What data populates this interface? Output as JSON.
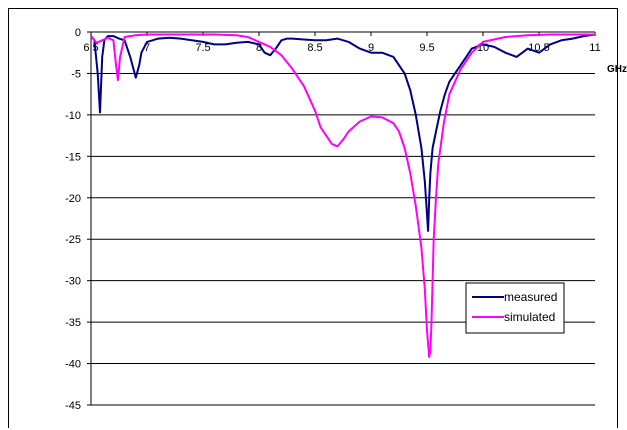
{
  "chart_data": {
    "type": "line",
    "title": "",
    "xlabel": "GHz",
    "ylabel": "",
    "xlim": [
      6.5,
      11
    ],
    "ylim": [
      -45,
      0
    ],
    "x_ticks": [
      "6.5",
      "7",
      "7.5",
      "8",
      "8.5",
      "9",
      "9.5",
      "10",
      "10.5",
      "11"
    ],
    "y_ticks": [
      "0",
      "-5",
      "-10",
      "-15",
      "-20",
      "-25",
      "-30",
      "-35",
      "-40",
      "-45"
    ],
    "grid": "horizontal",
    "legend_position": "right",
    "series": [
      {
        "name": "measured",
        "color": "#000080",
        "x": [
          6.5,
          6.53,
          6.56,
          6.58,
          6.6,
          6.62,
          6.65,
          6.7,
          6.75,
          6.8,
          6.85,
          6.9,
          6.93,
          6.95,
          7.0,
          7.05,
          7.1,
          7.2,
          7.3,
          7.4,
          7.5,
          7.6,
          7.7,
          7.8,
          7.9,
          8.0,
          8.05,
          8.1,
          8.15,
          8.2,
          8.25,
          8.3,
          8.4,
          8.5,
          8.6,
          8.7,
          8.8,
          8.9,
          9.0,
          9.1,
          9.2,
          9.3,
          9.35,
          9.4,
          9.45,
          9.48,
          9.5,
          9.51,
          9.52,
          9.53,
          9.55,
          9.58,
          9.62,
          9.66,
          9.7,
          9.75,
          9.8,
          9.85,
          9.9,
          10.0,
          10.1,
          10.2,
          10.3,
          10.4,
          10.5,
          10.6,
          10.7,
          10.8,
          10.9,
          11.0
        ],
        "values": [
          -0.5,
          -1.0,
          -5.0,
          -9.7,
          -3.0,
          -1.0,
          -0.5,
          -0.5,
          -0.8,
          -1.0,
          -3.0,
          -5.5,
          -4.0,
          -2.5,
          -1.2,
          -1.0,
          -0.8,
          -0.7,
          -0.8,
          -1.0,
          -1.2,
          -1.5,
          -1.5,
          -1.3,
          -1.2,
          -1.5,
          -2.5,
          -2.8,
          -2.0,
          -1.0,
          -0.8,
          -0.8,
          -0.9,
          -1.0,
          -1.0,
          -0.8,
          -1.2,
          -2.0,
          -2.5,
          -2.5,
          -3.0,
          -5.0,
          -7.0,
          -10.0,
          -14.0,
          -18.0,
          -22.0,
          -24.0,
          -20.0,
          -17.0,
          -14.0,
          -12.0,
          -9.5,
          -7.5,
          -6.0,
          -5.0,
          -4.0,
          -3.0,
          -2.0,
          -1.5,
          -1.8,
          -2.5,
          -3.0,
          -2.0,
          -2.5,
          -1.5,
          -1.0,
          -0.8,
          -0.5,
          -0.3
        ]
      },
      {
        "name": "simulated",
        "color": "#ff00ff",
        "x": [
          6.5,
          6.55,
          6.6,
          6.65,
          6.7,
          6.72,
          6.74,
          6.76,
          6.8,
          6.9,
          7.0,
          7.2,
          7.4,
          7.6,
          7.8,
          7.9,
          8.0,
          8.1,
          8.2,
          8.3,
          8.4,
          8.5,
          8.55,
          8.6,
          8.65,
          8.7,
          8.75,
          8.8,
          8.9,
          9.0,
          9.1,
          9.2,
          9.25,
          9.3,
          9.35,
          9.4,
          9.45,
          9.48,
          9.5,
          9.52,
          9.53,
          9.54,
          9.55,
          9.56,
          9.58,
          9.6,
          9.65,
          9.7,
          9.8,
          9.9,
          10.0,
          10.2,
          10.4,
          10.6,
          10.8,
          11.0
        ],
        "values": [
          -0.5,
          -1.3,
          -1.0,
          -0.7,
          -1.0,
          -3.5,
          -5.8,
          -3.0,
          -0.6,
          -0.4,
          -0.3,
          -0.3,
          -0.3,
          -0.3,
          -0.4,
          -0.6,
          -1.2,
          -1.8,
          -2.8,
          -4.5,
          -6.5,
          -9.5,
          -11.5,
          -12.5,
          -13.5,
          -13.8,
          -13.0,
          -12.0,
          -10.8,
          -10.2,
          -10.3,
          -11.0,
          -12.0,
          -14.0,
          -17.0,
          -21.0,
          -26.0,
          -31.0,
          -36.0,
          -39.2,
          -38.5,
          -35.0,
          -30.0,
          -25.0,
          -20.0,
          -16.0,
          -11.0,
          -7.5,
          -4.5,
          -2.5,
          -1.2,
          -0.6,
          -0.4,
          -0.3,
          -0.3,
          -0.3
        ]
      }
    ]
  }
}
